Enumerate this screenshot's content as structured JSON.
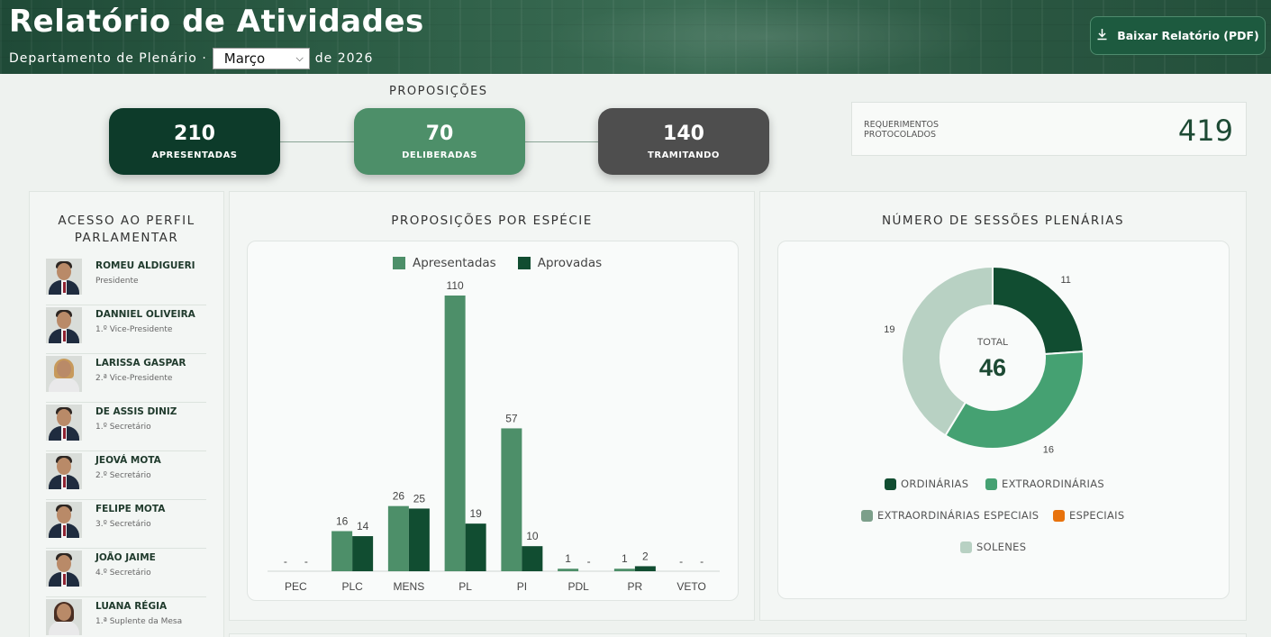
{
  "header": {
    "title": "Relatório de Atividades",
    "department": "Departamento de Plenário ·",
    "month_selected": "Março",
    "year_text": "de 2026",
    "pdf_button": "Baixar Relatório (PDF)"
  },
  "proposicoes": {
    "label": "PROPOSIÇÕES",
    "apresentadas": {
      "value": "210",
      "label": "APRESENTADAS",
      "color": "#0d3b2a"
    },
    "deliberadas": {
      "value": "70",
      "label": "DELIBERADAS",
      "color": "#4d8f69"
    },
    "tramitando": {
      "value": "140",
      "label": "TRAMITANDO",
      "color": "#4e4e4e"
    }
  },
  "requerimentos": {
    "label": "REQUERIMENTOS PROTOCOLADOS",
    "value": "419"
  },
  "parlamentares": {
    "title_line1": "ACESSO AO PERFIL",
    "title_line2": "PARLAMENTAR",
    "items": [
      {
        "name": "ROMEU ALDIGUERI",
        "role": "Presidente"
      },
      {
        "name": "DANNIEL OLIVEIRA",
        "role": "1.º Vice-Presidente"
      },
      {
        "name": "LARISSA GASPAR",
        "role": "2.ª Vice-Presidente"
      },
      {
        "name": "DE ASSIS DINIZ",
        "role": "1.º Secretário"
      },
      {
        "name": "JEOVÁ MOTA",
        "role": "2.º Secretário"
      },
      {
        "name": "FELIPE MOTA",
        "role": "3.º Secretário"
      },
      {
        "name": "JOÃO JAIME",
        "role": "4.º Secretário"
      },
      {
        "name": "LUANA RÉGIA",
        "role": "1.ª Suplente da Mesa"
      }
    ]
  },
  "especie_panel": {
    "title": "PROPOSIÇÕES POR ESPÉCIE"
  },
  "sessoes_panel": {
    "title": "NÚMERO DE SESSÕES PLENÁRIAS",
    "total_label": "TOTAL",
    "total_value": "46"
  },
  "colors": {
    "apresentadas": "#4d8f69",
    "aprovadas": "#114d31"
  },
  "chart_data": [
    {
      "type": "bar",
      "title": "PROPOSIÇÕES POR ESPÉCIE",
      "categories": [
        "PEC",
        "PLC",
        "MENS",
        "PL",
        "PI",
        "PDL",
        "PR",
        "VETO"
      ],
      "series": [
        {
          "name": "Apresentadas",
          "values": [
            null,
            16,
            26,
            110,
            57,
            1,
            1,
            null
          ],
          "labels": [
            "-",
            "16",
            "26",
            "110",
            "57",
            "1",
            "1",
            "-"
          ]
        },
        {
          "name": "Aprovadas",
          "values": [
            null,
            14,
            25,
            19,
            10,
            null,
            2,
            null
          ],
          "labels": [
            "-",
            "14",
            "25",
            "19",
            "10",
            "-",
            "2",
            "-"
          ]
        }
      ],
      "ylim": [
        0,
        110
      ],
      "legend": "top-center",
      "grid": false
    },
    {
      "type": "pie",
      "title": "NÚMERO DE SESSÕES PLENÁRIAS",
      "center_label": "TOTAL",
      "center_value": "46",
      "slices": [
        {
          "name": "ORDINÁRIAS",
          "value": 11,
          "color": "#114d31"
        },
        {
          "name": "EXTRAORDINÁRIAS",
          "value": 16,
          "color": "#45a172"
        },
        {
          "name": "EXTRAORDINÁRIAS ESPECIAIS",
          "value": 0,
          "color": "#7c9f8a"
        },
        {
          "name": "ESPECIAIS",
          "value": 0,
          "color": "#e8720c"
        },
        {
          "name": "SOLENES",
          "value": 19,
          "color": "#b8d1c3"
        }
      ],
      "legend": "bottom"
    }
  ]
}
